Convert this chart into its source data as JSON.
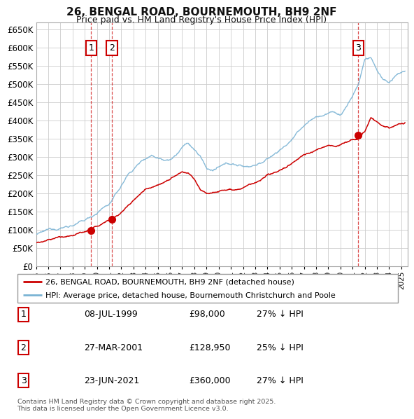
{
  "title": "26, BENGAL ROAD, BOURNEMOUTH, BH9 2NF",
  "subtitle": "Price paid vs. HM Land Registry's House Price Index (HPI)",
  "legend_line1": "26, BENGAL ROAD, BOURNEMOUTH, BH9 2NF (detached house)",
  "legend_line2": "HPI: Average price, detached house, Bournemouth Christchurch and Poole",
  "footer": "Contains HM Land Registry data © Crown copyright and database right 2025.\nThis data is licensed under the Open Government Licence v3.0.",
  "sales": [
    {
      "num": 1,
      "date": "08-JUL-1999",
      "price": "£98,000",
      "hpi_note": "27% ↓ HPI",
      "year": 1999.52
    },
    {
      "num": 2,
      "date": "27-MAR-2001",
      "price": "£128,950",
      "hpi_note": "25% ↓ HPI",
      "year": 2001.24
    },
    {
      "num": 3,
      "date": "23-JUN-2021",
      "price": "£360,000",
      "hpi_note": "27% ↓ HPI",
      "year": 2021.47
    }
  ],
  "red_color": "#cc0000",
  "blue_color": "#7ab3d4",
  "bg_color": "#ffffff",
  "grid_color": "#cccccc",
  "ylim": [
    0,
    670000
  ],
  "xlim_start": 1995.0,
  "xlim_end": 2025.5,
  "hpi_nodes_t": [
    1995,
    1995.5,
    1996,
    1996.5,
    1997,
    1997.5,
    1998,
    1998.5,
    1999,
    1999.5,
    2000,
    2000.5,
    2001,
    2001.5,
    2002,
    2002.5,
    2003,
    2003.5,
    2004,
    2004.5,
    2005,
    2005.5,
    2006,
    2006.5,
    2007,
    2007.5,
    2008,
    2008.5,
    2009,
    2009.5,
    2010,
    2010.5,
    2011,
    2011.5,
    2012,
    2012.5,
    2013,
    2013.5,
    2014,
    2014.5,
    2015,
    2015.5,
    2016,
    2016.5,
    2017,
    2017.5,
    2018,
    2018.5,
    2019,
    2019.5,
    2020,
    2020.5,
    2021,
    2021.5,
    2022,
    2022.5,
    2023,
    2023.5,
    2024,
    2024.5,
    2025.3
  ],
  "hpi_nodes_v": [
    88000,
    90000,
    95000,
    100000,
    105000,
    110000,
    115000,
    120000,
    125000,
    135000,
    148000,
    162000,
    172000,
    195000,
    220000,
    250000,
    268000,
    285000,
    300000,
    310000,
    305000,
    302000,
    308000,
    318000,
    340000,
    348000,
    330000,
    310000,
    278000,
    272000,
    278000,
    282000,
    285000,
    282000,
    278000,
    280000,
    285000,
    292000,
    300000,
    312000,
    325000,
    338000,
    355000,
    372000,
    390000,
    405000,
    415000,
    420000,
    425000,
    430000,
    420000,
    445000,
    475000,
    510000,
    575000,
    580000,
    545000,
    520000,
    510000,
    525000,
    538000
  ],
  "red_nodes_t": [
    1995,
    1995.5,
    1996,
    1996.5,
    1997,
    1997.5,
    1998,
    1998.5,
    1999,
    1999.52,
    2000,
    2000.5,
    2001,
    2001.24,
    2001.5,
    2002,
    2002.5,
    2003,
    2003.5,
    2004,
    2004.5,
    2005,
    2005.5,
    2006,
    2006.5,
    2007,
    2007.5,
    2008,
    2008.5,
    2009,
    2009.5,
    2010,
    2010.5,
    2011,
    2011.5,
    2012,
    2012.5,
    2013,
    2013.5,
    2014,
    2014.5,
    2015,
    2015.5,
    2016,
    2016.5,
    2017,
    2017.5,
    2018,
    2018.5,
    2019,
    2019.5,
    2020,
    2020.5,
    2021,
    2021.47,
    2021.5,
    2022,
    2022.5,
    2023,
    2023.5,
    2024,
    2024.5,
    2025.3
  ],
  "red_nodes_v": [
    65000,
    66000,
    70000,
    73000,
    76000,
    79000,
    83000,
    88000,
    93000,
    98000,
    105000,
    115000,
    122000,
    128950,
    135000,
    148000,
    165000,
    180000,
    195000,
    210000,
    220000,
    228000,
    235000,
    245000,
    255000,
    262000,
    255000,
    240000,
    215000,
    208000,
    212000,
    218000,
    222000,
    225000,
    228000,
    232000,
    238000,
    242000,
    248000,
    255000,
    262000,
    270000,
    278000,
    290000,
    302000,
    315000,
    322000,
    328000,
    335000,
    340000,
    338000,
    342000,
    350000,
    356000,
    360000,
    362000,
    378000,
    418000,
    405000,
    390000,
    385000,
    390000,
    395000
  ]
}
